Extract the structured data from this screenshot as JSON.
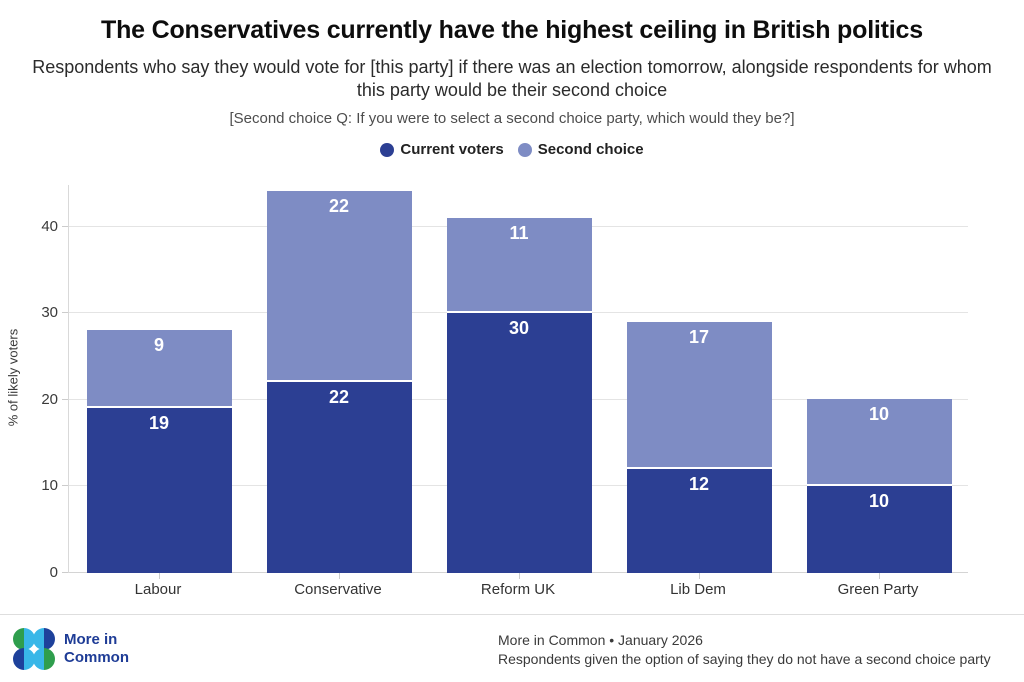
{
  "header": {
    "title": "The Conservatives currently have the highest ceiling in British politics",
    "subtitle": "Respondents who say they would vote for [this party] if there was an election tomorrow, alongside respondents for whom this party would be their second choice",
    "note": "[Second choice Q: If you were to select a second choice party, which would they be?]"
  },
  "legend": [
    {
      "label": "Current voters",
      "color": "#2c3f93"
    },
    {
      "label": "Second choice",
      "color": "#7e8cc4"
    }
  ],
  "chart_data": {
    "type": "bar",
    "stacked": true,
    "title": "The Conservatives currently have the highest ceiling in British politics",
    "categories": [
      "Labour",
      "Conservative",
      "Reform UK",
      "Lib Dem",
      "Green Party"
    ],
    "series": [
      {
        "name": "Current voters",
        "color": "#2c3f93",
        "values": [
          19,
          22,
          30,
          12,
          10
        ]
      },
      {
        "name": "Second choice",
        "color": "#7e8cc4",
        "values": [
          9,
          22,
          11,
          17,
          10
        ]
      }
    ],
    "totals": [
      28,
      44,
      41,
      29,
      20
    ],
    "xlabel": "",
    "ylabel": "% of likely voters",
    "yticks": [
      0,
      10,
      20,
      30,
      40
    ],
    "ylim": [
      0,
      44.8
    ],
    "grid": true,
    "legend_position": "top",
    "bar_label_color": "#ffffff"
  },
  "footer": {
    "brand_line1": "More in",
    "brand_line2": "Common",
    "source_line": "More in Common • January 2026",
    "note_line": "Respondents given the option of saying they do not have a second choice party"
  },
  "colors": {
    "current_voters": "#2c3f93",
    "second_choice": "#7e8cc4",
    "logo_green": "#2f9e4d",
    "logo_cyan": "#39b7e8",
    "logo_blue": "#1e419b",
    "brand_navy": "#1e3c96"
  }
}
